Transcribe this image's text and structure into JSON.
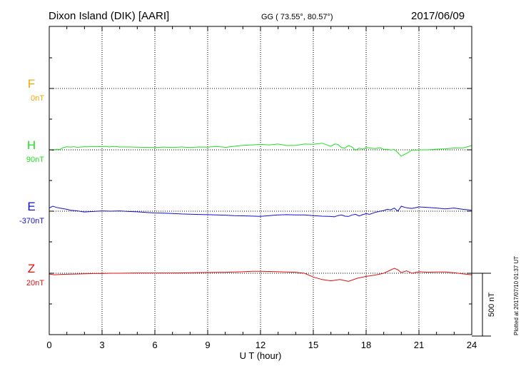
{
  "header": {
    "station": "Dixon Island (DIK)  [AARI]",
    "coords": "GG ( 73.55°,  80.57°)",
    "date": "2017/06/09"
  },
  "plotted_note": "Plotted at 2017/07/10 01:37  UT",
  "colors": {
    "F": "#f5a500",
    "H": "#22e022",
    "E": "#1010d0",
    "Z": "#e01010"
  },
  "chart_data": {
    "type": "line",
    "title": "Dixon Island (DIK)  [AARI]",
    "xlabel": "U T (hour)",
    "xlim": [
      0,
      24
    ],
    "xticks": [
      "0",
      "3",
      "6",
      "9",
      "12",
      "15",
      "18",
      "21",
      "24"
    ],
    "y_unit": "nT",
    "scale_bar": {
      "value": 500,
      "label": "500 nT"
    },
    "grid": true,
    "series": [
      {
        "name": "F",
        "offset_label": "0nT",
        "color": "#f5a500",
        "baseline": 0,
        "x": [],
        "y": []
      },
      {
        "name": "H",
        "offset_label": "90nT",
        "color": "#22e022",
        "baseline": 90,
        "x": [
          0,
          0.2,
          0.4,
          0.6,
          0.8,
          1,
          1.2,
          1.4,
          1.6,
          1.8,
          2,
          2.2,
          2.4,
          2.6,
          2.8,
          3,
          3.2,
          3.4,
          3.6,
          3.8,
          4,
          4.5,
          5,
          5.5,
          6,
          6.5,
          7,
          7.5,
          8,
          8.5,
          9,
          9.5,
          10,
          10.5,
          11,
          11.5,
          12,
          12.5,
          13,
          13.5,
          14,
          14.5,
          15,
          15.5,
          16,
          16.2,
          16.4,
          16.6,
          16.8,
          17,
          17.2,
          17.4,
          17.6,
          17.8,
          18,
          18.2,
          18.5,
          18.8,
          19,
          19.2,
          19.4,
          19.6,
          19.8,
          20,
          20.2,
          20.4,
          20.6,
          20.8,
          21,
          21.5,
          22,
          22.5,
          23,
          23.5,
          24
        ],
        "y": [
          93,
          85,
          95,
          92,
          108,
          115,
          112,
          115,
          110,
          113,
          115,
          114,
          117,
          114,
          116,
          115,
          118,
          113,
          116,
          116,
          113,
          113,
          111,
          110,
          109,
          112,
          109,
          113,
          108,
          113,
          111,
          117,
          110,
          118,
          126,
          129,
          133,
          129,
          136,
          124,
          125,
          136,
          134,
          143,
          118,
          136,
          133,
          107,
          103,
          124,
          112,
          85,
          104,
          95,
          108,
          104,
          100,
          106,
          94,
          94,
          88,
          93,
          67,
          40,
          55,
          69,
          89,
          87,
          90,
          90,
          95,
          98,
          104,
          105,
          124
        ]
      },
      {
        "name": "E",
        "offset_label": "-370nT",
        "color": "#1010d0",
        "baseline": -370,
        "x": [
          0,
          0.2,
          0.4,
          0.6,
          0.8,
          1,
          1.2,
          1.4,
          1.6,
          1.8,
          2,
          2.5,
          3,
          3.5,
          4,
          4.5,
          5,
          5.5,
          6,
          6.5,
          7,
          7.5,
          8,
          8.5,
          9,
          9.5,
          10,
          10.5,
          11,
          11.5,
          12,
          12.5,
          13,
          13.5,
          14,
          14.5,
          15,
          15.5,
          16,
          16.2,
          16.4,
          16.6,
          16.8,
          17,
          17.2,
          17.4,
          17.6,
          17.8,
          18,
          18.2,
          18.5,
          18.8,
          19,
          19.2,
          19.4,
          19.6,
          19.8,
          20,
          20.2,
          20.4,
          20.6,
          20.8,
          21,
          21.5,
          22,
          22.5,
          23,
          23.5,
          24
        ],
        "y": [
          -345,
          -330,
          -340,
          -345,
          -350,
          -355,
          -362,
          -365,
          -368,
          -372,
          -376,
          -372,
          -368,
          -370,
          -368,
          -372,
          -375,
          -380,
          -384,
          -386,
          -388,
          -392,
          -394,
          -396,
          -398,
          -400,
          -402,
          -405,
          -407,
          -409,
          -411,
          -405,
          -400,
          -398,
          -400,
          -400,
          -405,
          -410,
          -412,
          -415,
          -405,
          -400,
          -410,
          -412,
          -400,
          -395,
          -408,
          -398,
          -390,
          -395,
          -380,
          -370,
          -365,
          -355,
          -360,
          -345,
          -370,
          -330,
          -340,
          -345,
          -348,
          -342,
          -336,
          -340,
          -345,
          -352,
          -345,
          -355,
          -362
        ]
      },
      {
        "name": "Z",
        "offset_label": "20nT",
        "color": "#e01010",
        "baseline": 20,
        "x": [
          0,
          0.3,
          0.6,
          1,
          1.5,
          2,
          2.5,
          3,
          3.5,
          4,
          5,
          6,
          7,
          8,
          9,
          10,
          11,
          11.5,
          12,
          12.5,
          13,
          13.5,
          14,
          14.5,
          15,
          15.5,
          16,
          16.5,
          17,
          17.5,
          18,
          18.5,
          19,
          19.3,
          19.6,
          19.8,
          20,
          20.3,
          20.6,
          21,
          21.5,
          22,
          22.5,
          23,
          23.5,
          24
        ],
        "y": [
          14,
          8,
          10,
          12,
          14,
          16,
          18,
          18,
          20,
          20,
          22,
          22,
          22,
          24,
          26,
          28,
          32,
          36,
          36,
          34,
          32,
          30,
          28,
          20,
          -10,
          -30,
          -40,
          -30,
          -45,
          -20,
          -5,
          5,
          20,
          40,
          60,
          48,
          25,
          40,
          20,
          32,
          28,
          30,
          30,
          24,
          15,
          8
        ]
      }
    ]
  }
}
